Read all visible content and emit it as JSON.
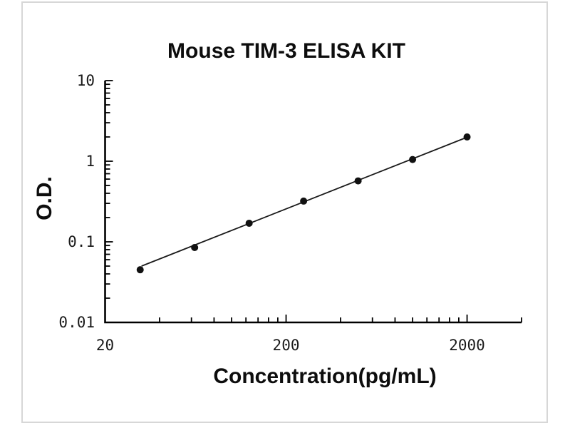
{
  "window": {
    "background_color": "#ffffff",
    "card_border_color": "#d7d7d7"
  },
  "chart_data": {
    "type": "scatter",
    "title": "Mouse TIM-3 ELISA KIT",
    "xlabel": "Concentration(pg/mL)",
    "ylabel": "O.D.",
    "xscale": "log",
    "yscale": "log",
    "xlim": [
      20,
      4000
    ],
    "ylim": [
      0.01,
      10
    ],
    "grid": false,
    "x": [
      31.25,
      62.5,
      125,
      250,
      500,
      1000,
      2000
    ],
    "y": [
      0.045,
      0.085,
      0.17,
      0.32,
      0.57,
      1.05,
      2.0
    ],
    "fit_line": {
      "x": [
        31.8,
        2030
      ],
      "y": [
        0.05,
        2.01
      ]
    },
    "x_ticks": {
      "major": [
        20,
        200,
        2000
      ],
      "labels": [
        "20",
        "200",
        "2000"
      ]
    },
    "y_ticks": {
      "major": [
        10,
        1,
        0.1,
        0.01
      ],
      "labels": [
        "10",
        "1",
        "0.1",
        "0.01"
      ]
    },
    "minor_ticks": "log_2_to_9_per_decade",
    "marker_color": "#111111",
    "line_color": "#1a1a1a",
    "axis_color": "#000000",
    "tick_label_color": "#1a1a1a",
    "text_color": "#0d0d0d"
  }
}
